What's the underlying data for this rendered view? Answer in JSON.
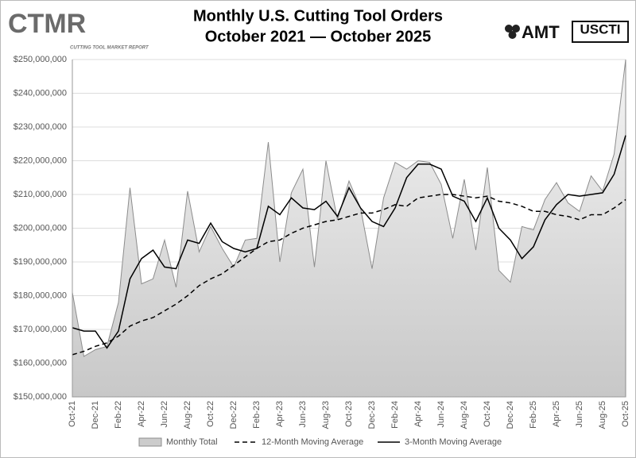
{
  "chart_data": {
    "type": "line",
    "title": "Monthly U.S. Cutting Tool Orders",
    "subtitle": "October 2021 — October 2025",
    "logos": {
      "ctmr": "CTMR",
      "ctmr_tagline": "CUTTING TOOL MARKET REPORT",
      "amt": "AMT",
      "uscti": "USCTI"
    },
    "categories": [
      "Oct-21",
      null,
      "Dec-21",
      null,
      "Feb-22",
      null,
      "Apr-22",
      null,
      "Jun-22",
      null,
      "Aug-22",
      null,
      "Oct-22",
      null,
      "Dec-22",
      null,
      "Feb-23",
      null,
      "Apr-23",
      null,
      "Jun-23",
      null,
      "Aug-23",
      null,
      "Oct-23",
      null,
      "Dec-23",
      null,
      "Feb-24",
      null,
      "Apr-24",
      null,
      "Jun-24",
      null,
      "Aug-24",
      null,
      "Oct-24",
      null,
      "Dec-24",
      null,
      "Feb-25",
      null,
      "Apr-25",
      null,
      "Jun-25",
      null,
      "Aug-25",
      null,
      "Oct-25"
    ],
    "series": [
      {
        "name": "Monthly Total",
        "style": "area",
        "color": "#8c8c8c",
        "values": [
          181000000,
          162000000,
          164000000,
          165000000,
          178000000,
          212000000,
          183500000,
          185000000,
          196500000,
          182500000,
          211000000,
          193000000,
          200500000,
          194000000,
          188500000,
          196500000,
          197000000,
          225500000,
          190000000,
          210500000,
          217500000,
          188500000,
          220000000,
          202500000,
          214000000,
          206000000,
          188000000,
          209000000,
          219500000,
          217500000,
          220000000,
          219500000,
          213000000,
          197000000,
          214500000,
          193500000,
          218000000,
          187500000,
          184000000,
          200500000,
          199500000,
          208500000,
          213500000,
          207500000,
          205000000,
          215500000,
          211000000,
          222000000,
          250000000
        ]
      },
      {
        "name": "12-Month Moving Average",
        "style": "dashed",
        "color": "#000000",
        "values": [
          162500000,
          163500000,
          165000000,
          166000000,
          168000000,
          171000000,
          172500000,
          173500000,
          175500000,
          177500000,
          180000000,
          183000000,
          185000000,
          186500000,
          189000000,
          191500000,
          194000000,
          196000000,
          196500000,
          198500000,
          200000000,
          201000000,
          202000000,
          202500000,
          203500000,
          204500000,
          204500000,
          205500000,
          207000000,
          206500000,
          209000000,
          209500000,
          210000000,
          210000000,
          209500000,
          209000000,
          209500000,
          208000000,
          207500000,
          206500000,
          205000000,
          205000000,
          204000000,
          203500000,
          202500000,
          204000000,
          204000000,
          206000000,
          208500000
        ]
      },
      {
        "name": "3-Month Moving Average",
        "style": "solid",
        "color": "#000000",
        "values": [
          170500000,
          169500000,
          169500000,
          164500000,
          169500000,
          185000000,
          191000000,
          193500000,
          188500000,
          188000000,
          196500000,
          195500000,
          201500000,
          196000000,
          194000000,
          193000000,
          194000000,
          206500000,
          204000000,
          209000000,
          206000000,
          205500000,
          208000000,
          203500000,
          212000000,
          206000000,
          202000000,
          200500000,
          206000000,
          215000000,
          219000000,
          219000000,
          217500000,
          209500000,
          208000000,
          202000000,
          209000000,
          200000000,
          196500000,
          191000000,
          194500000,
          202500000,
          207000000,
          210000000,
          209500000,
          210000000,
          210500000,
          216000000,
          227500000
        ]
      }
    ],
    "ylim": [
      150000000,
      250000000
    ],
    "yticks": [
      {
        "value": 150000000,
        "label": "$150,000,000"
      },
      {
        "value": 160000000,
        "label": "$160,000,000"
      },
      {
        "value": 170000000,
        "label": "$170,000,000"
      },
      {
        "value": 180000000,
        "label": "$180,000,000"
      },
      {
        "value": 190000000,
        "label": "$190,000,000"
      },
      {
        "value": 200000000,
        "label": "$200,000,000"
      },
      {
        "value": 210000000,
        "label": "$210,000,000"
      },
      {
        "value": 220000000,
        "label": "$220,000,000"
      },
      {
        "value": 230000000,
        "label": "$230,000,000"
      },
      {
        "value": 240000000,
        "label": "$240,000,000"
      },
      {
        "value": 250000000,
        "label": "$250,000,000"
      }
    ],
    "grid": true,
    "legend": "bottom"
  }
}
